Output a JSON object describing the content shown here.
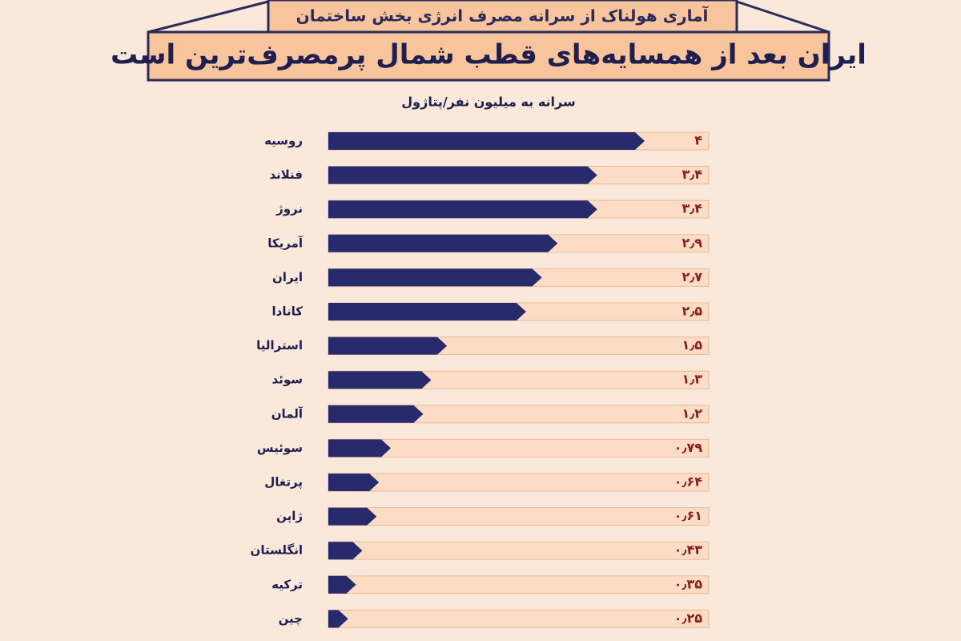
{
  "chart_data": {
    "type": "bar",
    "orientation": "horizontal",
    "subtitle": "آماری هولناک از سرانه مصرف انرژی بخش ساختمان",
    "title": "ایران بعد از همسایه‌های قطب شمال پرمصرف‌ترین است",
    "x_label": "سرانه به میلیون نفر/پتاژول",
    "categories": [
      "روسیه",
      "فنلاند",
      "نروژ",
      "آمریکا",
      "ایران",
      "کانادا",
      "استرالیا",
      "سوئد",
      "آلمان",
      "سوئیس",
      "پرتغال",
      "ژاپن",
      "انگلستان",
      "ترکیه",
      "چین"
    ],
    "values": [
      4,
      3.4,
      3.4,
      2.9,
      2.7,
      2.5,
      1.5,
      1.3,
      1.2,
      0.79,
      0.64,
      0.61,
      0.43,
      0.35,
      0.25
    ],
    "value_labels": [
      "۴",
      "۳٫۴",
      "۳٫۴",
      "۲٫۹",
      "۲٫۷",
      "۲٫۵",
      "۱٫۵",
      "۱٫۳",
      "۱٫۲",
      "۰٫۷۹",
      "۰٫۶۴",
      "۰٫۶۱",
      "۰٫۴۳",
      "۰٫۳۵",
      "۰٫۲۵"
    ],
    "color": "#272b6c",
    "track_color": "#fcdcc4",
    "value_label_color": "#8a1c1c"
  }
}
